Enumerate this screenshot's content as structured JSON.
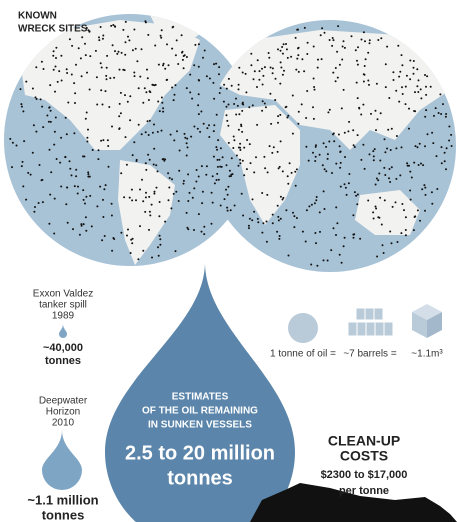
{
  "map": {
    "title": [
      "KNOWN",
      "WRECK SITES"
    ]
  },
  "exxon": {
    "lines": [
      "Exxon Valdez",
      "tanker spill",
      "1989"
    ],
    "amount": [
      "~40,000",
      "tonnes"
    ]
  },
  "deepwater": {
    "lines": [
      "Deepwater",
      "Horizon",
      "2010"
    ],
    "amount": [
      "~1.1 million",
      "tonnes"
    ]
  },
  "estimate": {
    "lines": [
      "ESTIMATES",
      "OF THE OIL REMAINING",
      "IN SUNKEN VESSELS"
    ],
    "amount": [
      "2.5 to 20 million",
      "tonnes"
    ]
  },
  "units": [
    "1 tonne of oil =",
    "~7 barrels =",
    "~1.1m³"
  ],
  "cleanup": {
    "title": [
      "CLEAN-UP",
      "COSTS"
    ],
    "range": "$2300 to $17,000",
    "unit": "per tonne"
  }
}
